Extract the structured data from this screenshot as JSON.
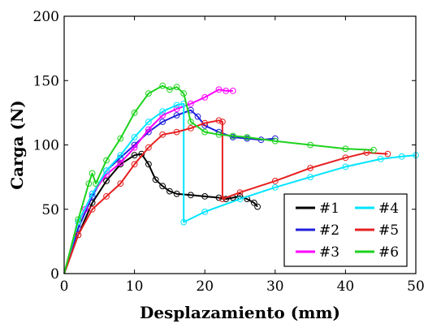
{
  "chart_data": {
    "type": "line",
    "title": "",
    "xlabel": "Desplazamiento (mm)",
    "ylabel": "Carga (N)",
    "xlim": [
      0,
      50
    ],
    "ylim": [
      0,
      200
    ],
    "xticks": [
      "0",
      "10",
      "20",
      "30",
      "40",
      "50"
    ],
    "yticks": [
      "0",
      "50",
      "100",
      "150",
      "200"
    ],
    "grid": false,
    "legend_position": "bottom-right",
    "series": [
      {
        "name": "#1",
        "color": "#000000",
        "points": [
          [
            0,
            0
          ],
          [
            2,
            30
          ],
          [
            4,
            55
          ],
          [
            6,
            72
          ],
          [
            8,
            85
          ],
          [
            10,
            92
          ],
          [
            11,
            93
          ],
          [
            12,
            85
          ],
          [
            13,
            73
          ],
          [
            14,
            68
          ],
          [
            15,
            64
          ],
          [
            16,
            62
          ],
          [
            18,
            61
          ],
          [
            20,
            60
          ],
          [
            22,
            59
          ],
          [
            23,
            58
          ],
          [
            24,
            59
          ],
          [
            25,
            60
          ],
          [
            26,
            58
          ],
          [
            27,
            55
          ],
          [
            27.5,
            52
          ]
        ]
      },
      {
        "name": "#2",
        "color": "#1f1fdc",
        "points": [
          [
            0,
            0
          ],
          [
            2,
            35
          ],
          [
            4,
            60
          ],
          [
            6,
            80
          ],
          [
            8,
            90
          ],
          [
            10,
            100
          ],
          [
            12,
            110
          ],
          [
            14,
            118
          ],
          [
            16,
            123
          ],
          [
            18,
            127
          ],
          [
            19,
            122
          ],
          [
            20,
            115
          ],
          [
            22,
            110
          ],
          [
            24,
            106
          ],
          [
            26,
            105
          ],
          [
            28,
            104
          ],
          [
            30,
            105
          ]
        ]
      },
      {
        "name": "#3",
        "color": "#ff00ff",
        "points": [
          [
            0,
            0
          ],
          [
            2,
            40
          ],
          [
            3,
            50
          ],
          [
            4,
            62
          ],
          [
            6,
            77
          ],
          [
            8,
            86
          ],
          [
            10,
            98
          ],
          [
            12,
            112
          ],
          [
            14,
            123
          ],
          [
            16,
            128
          ],
          [
            18,
            132
          ],
          [
            20,
            137
          ],
          [
            22,
            143
          ],
          [
            23,
            142
          ],
          [
            24,
            142
          ]
        ]
      },
      {
        "name": "#4",
        "color": "#00e5ff",
        "points": [
          [
            0,
            0
          ],
          [
            2,
            40
          ],
          [
            4,
            62
          ],
          [
            6,
            80
          ],
          [
            8,
            92
          ],
          [
            10,
            106
          ],
          [
            12,
            118
          ],
          [
            14,
            126
          ],
          [
            16,
            131
          ],
          [
            17,
            132
          ],
          [
            17,
            40
          ],
          [
            20,
            48
          ],
          [
            25,
            58
          ],
          [
            30,
            67
          ],
          [
            35,
            75
          ],
          [
            40,
            83
          ],
          [
            45,
            89
          ],
          [
            48,
            91
          ],
          [
            50,
            92
          ]
        ]
      },
      {
        "name": "#5",
        "color": "#e62020",
        "points": [
          [
            0,
            0
          ],
          [
            2,
            30
          ],
          [
            4,
            50
          ],
          [
            6,
            60
          ],
          [
            8,
            70
          ],
          [
            10,
            85
          ],
          [
            12,
            98
          ],
          [
            14,
            108
          ],
          [
            16,
            110
          ],
          [
            18,
            113
          ],
          [
            20,
            117
          ],
          [
            22,
            119
          ],
          [
            22.5,
            118
          ],
          [
            22.5,
            58
          ],
          [
            25,
            63
          ],
          [
            30,
            72
          ],
          [
            35,
            82
          ],
          [
            40,
            90
          ],
          [
            43,
            94
          ],
          [
            46,
            93
          ]
        ]
      },
      {
        "name": "#6",
        "color": "#1ed21e",
        "points": [
          [
            0,
            0
          ],
          [
            2,
            42
          ],
          [
            3.5,
            70
          ],
          [
            4,
            78
          ],
          [
            4.5,
            70
          ],
          [
            6,
            88
          ],
          [
            8,
            105
          ],
          [
            10,
            125
          ],
          [
            12,
            140
          ],
          [
            14,
            146
          ],
          [
            15,
            143
          ],
          [
            16,
            145
          ],
          [
            17,
            140
          ],
          [
            18,
            118
          ],
          [
            20,
            110
          ],
          [
            22,
            108
          ],
          [
            24,
            107
          ],
          [
            26,
            106
          ],
          [
            30,
            103
          ],
          [
            35,
            100
          ],
          [
            40,
            97
          ],
          [
            44,
            96
          ]
        ]
      }
    ]
  },
  "legend": {
    "items": [
      {
        "label": "#1",
        "color": "#000000"
      },
      {
        "label": "#4",
        "color": "#00e5ff"
      },
      {
        "label": "#2",
        "color": "#1f1fdc"
      },
      {
        "label": "#5",
        "color": "#e62020"
      },
      {
        "label": "#3",
        "color": "#ff00ff"
      },
      {
        "label": "#6",
        "color": "#1ed21e"
      }
    ]
  }
}
